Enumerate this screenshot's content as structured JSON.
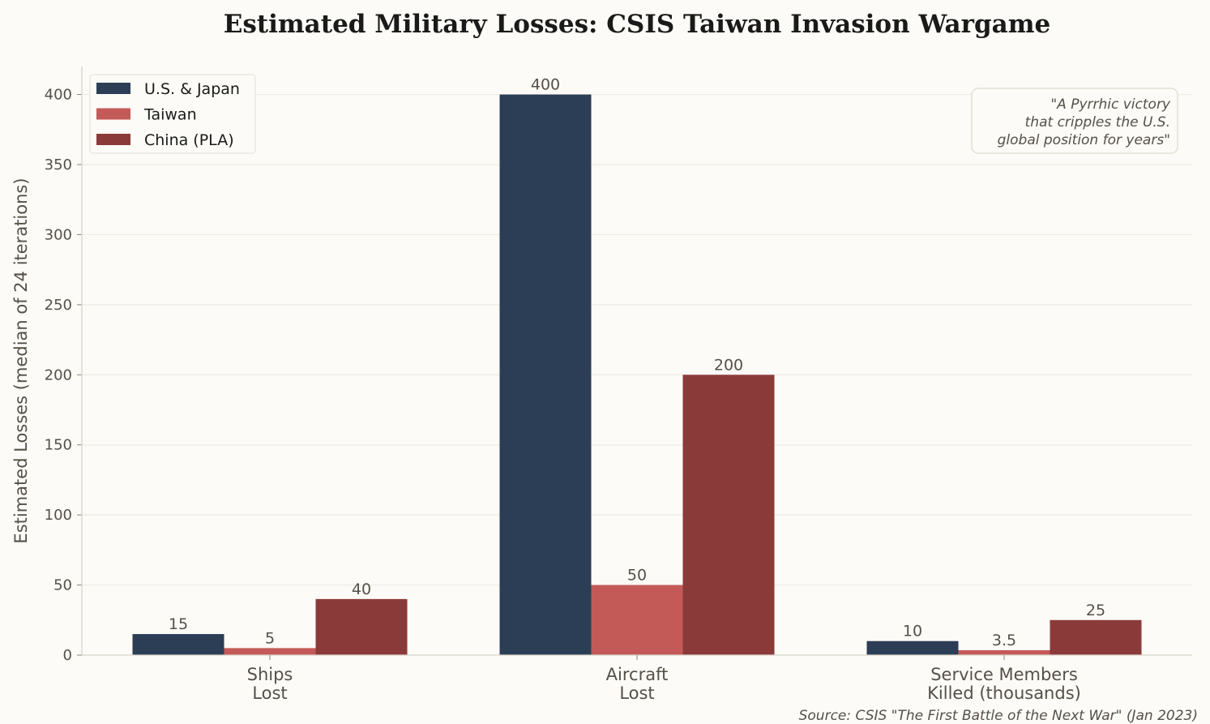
{
  "chart_data": {
    "type": "bar",
    "title": "Estimated Military Losses: CSIS Taiwan Invasion Wargame",
    "ylabel": "Estimated Losses (median of 24 iterations)",
    "xlabel": "",
    "ylim": [
      0,
      420
    ],
    "yticks": [
      0,
      50,
      100,
      150,
      200,
      250,
      300,
      350,
      400
    ],
    "grid": "horizontal",
    "legend_position": "top-left",
    "categories": [
      [
        "Ships",
        "Lost"
      ],
      [
        "Aircraft",
        "Lost"
      ],
      [
        "Service Members",
        "Killed (thousands)"
      ]
    ],
    "series": [
      {
        "name": "U.S. & Japan",
        "color": "#2c3e55",
        "values": [
          15,
          400,
          10
        ],
        "labels": [
          "15",
          "400",
          "10"
        ]
      },
      {
        "name": "Taiwan",
        "color": "#c45a58",
        "values": [
          5,
          50,
          3.5
        ],
        "labels": [
          "5",
          "50",
          "3.5"
        ]
      },
      {
        "name": "China (PLA)",
        "color": "#8b3a3a",
        "values": [
          40,
          200,
          25
        ],
        "labels": [
          "40",
          "200",
          "25"
        ]
      }
    ],
    "annotation": [
      "\"A Pyrrhic victory",
      "that cripples the U.S.",
      "global position for years\""
    ],
    "source": "Source: CSIS \"The First Battle of the Next War\" (Jan 2023)"
  }
}
